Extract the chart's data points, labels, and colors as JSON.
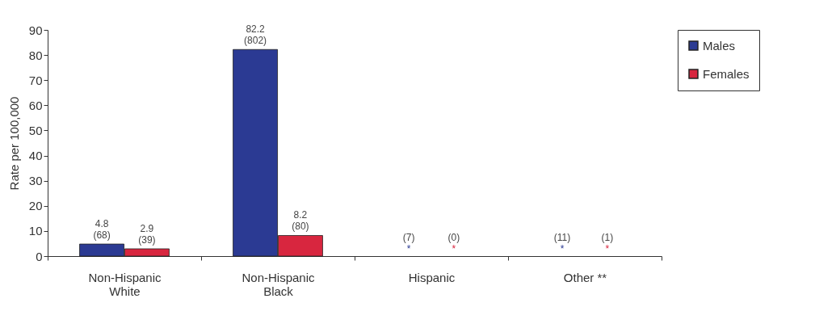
{
  "chart_data": {
    "type": "bar",
    "categories": [
      "Non-Hispanic\nWhite",
      "Non-Hispanic\nBlack",
      "Hispanic",
      "Other **"
    ],
    "ylabel": "Rate per 100,000",
    "ylim": [
      0,
      90
    ],
    "yticks": [
      0,
      10,
      20,
      30,
      40,
      50,
      60,
      70,
      80,
      90
    ],
    "grid": false,
    "legend": "top right",
    "series": [
      {
        "name": "Males",
        "color": "#2b3a93",
        "values": [
          4.8,
          82.2,
          null,
          null
        ],
        "value_labels": [
          "4.8\n(68)",
          "82.2\n(802)",
          "(7)\n*",
          "(11)\n*"
        ]
      },
      {
        "name": "Females",
        "color": "#d8263f",
        "values": [
          2.9,
          8.2,
          null,
          null
        ],
        "value_labels": [
          "2.9\n(39)",
          "8.2\n(80)",
          "(0)\n*",
          "(1)\n*"
        ]
      }
    ]
  }
}
